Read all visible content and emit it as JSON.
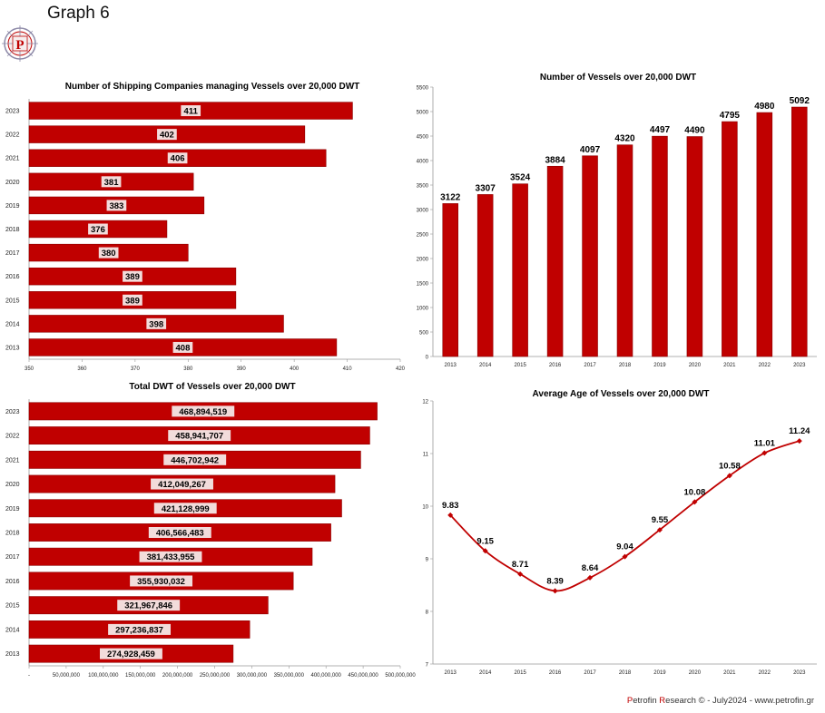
{
  "page": {
    "title": "Graph 6",
    "footer": {
      "p": "P",
      "part1": "etrofin ",
      "r": "R",
      "part2": "esearch © - July2024 - www.petrofin.gr"
    },
    "logo_letter": "P"
  },
  "colors": {
    "bar": "#c00000",
    "bar_border": "#8b0000",
    "label_bg": "#f2dcdb",
    "line": "#c00000",
    "axis": "#999999"
  },
  "chart_data": [
    {
      "id": "companies",
      "type": "bar",
      "orientation": "horizontal",
      "title": "Number of Shipping Companies managing Vessels over 20,000 DWT",
      "categories": [
        "2023",
        "2022",
        "2021",
        "2020",
        "2019",
        "2018",
        "2017",
        "2016",
        "2015",
        "2014",
        "2013"
      ],
      "values": [
        411,
        402,
        406,
        381,
        383,
        376,
        380,
        389,
        389,
        398,
        408
      ],
      "labels": [
        "411",
        "402",
        "406",
        "381",
        "383",
        "376",
        "380",
        "389",
        "389",
        "398",
        "408"
      ],
      "xlim": [
        350,
        420
      ],
      "xticks": [
        350,
        360,
        370,
        380,
        390,
        400,
        410,
        420
      ],
      "xtick_labels": [
        "350",
        "360",
        "370",
        "380",
        "390",
        "400",
        "410",
        "420"
      ],
      "xlabel": "",
      "ylabel": ""
    },
    {
      "id": "vessels",
      "type": "bar",
      "orientation": "vertical",
      "title": "Number of Vessels over 20,000 DWT",
      "categories": [
        "2013",
        "2014",
        "2015",
        "2016",
        "2017",
        "2018",
        "2019",
        "2020",
        "2021",
        "2022",
        "2023"
      ],
      "values": [
        3122,
        3307,
        3524,
        3884,
        4097,
        4320,
        4497,
        4490,
        4795,
        4980,
        5092
      ],
      "labels": [
        "3122",
        "3307",
        "3524",
        "3884",
        "4097",
        "4320",
        "4497",
        "4490",
        "4795",
        "4980",
        "5092"
      ],
      "ylim": [
        0,
        5500
      ],
      "yticks": [
        0,
        500,
        1000,
        1500,
        2000,
        2500,
        3000,
        3500,
        4000,
        4500,
        5000,
        5500
      ],
      "ytick_labels": [
        "0",
        "500",
        "1000",
        "1500",
        "2000",
        "2500",
        "3000",
        "3500",
        "4000",
        "4500",
        "5000",
        "5500"
      ],
      "xlabel": "",
      "ylabel": ""
    },
    {
      "id": "dwt",
      "type": "bar",
      "orientation": "horizontal",
      "title": "Total DWT of Vessels over 20,000 DWT",
      "categories": [
        "2023",
        "2022",
        "2021",
        "2020",
        "2019",
        "2018",
        "2017",
        "2016",
        "2015",
        "2014",
        "2013"
      ],
      "values": [
        468894519,
        458941707,
        446702942,
        412049267,
        421128999,
        406566483,
        381433955,
        355930032,
        321967846,
        297236837,
        274928459
      ],
      "labels": [
        "468,894,519",
        "458,941,707",
        "446,702,942",
        "412,049,267",
        "421,128,999",
        "406,566,483",
        "381,433,955",
        "355,930,032",
        "321,967,846",
        "297,236,837",
        "274,928,459"
      ],
      "xlim": [
        0,
        500000000
      ],
      "xticks": [
        0,
        50000000,
        100000000,
        150000000,
        200000000,
        250000000,
        300000000,
        350000000,
        400000000,
        450000000,
        500000000
      ],
      "xtick_labels": [
        "-",
        "50,000,000",
        "100,000,000",
        "150,000,000",
        "200,000,000",
        "250,000,000",
        "300,000,000",
        "350,000,000",
        "400,000,000",
        "450,000,000",
        "500,000,000"
      ],
      "xlabel": "",
      "ylabel": ""
    },
    {
      "id": "age",
      "type": "line",
      "title": "Average Age of Vessels over 20,000 DWT",
      "categories": [
        "2013",
        "2014",
        "2015",
        "2016",
        "2017",
        "2018",
        "2019",
        "2020",
        "2021",
        "2022",
        "2023"
      ],
      "values": [
        9.83,
        9.15,
        8.71,
        8.39,
        8.64,
        9.04,
        9.55,
        10.08,
        10.58,
        11.01,
        11.24
      ],
      "labels": [
        "9.83",
        "9.15",
        "8.71",
        "8.39",
        "8.64",
        "9.04",
        "9.55",
        "10.08",
        "10.58",
        "11.01",
        "11.24"
      ],
      "ylim": [
        7,
        12
      ],
      "yticks": [
        7,
        8,
        9,
        10,
        11,
        12
      ],
      "ytick_labels": [
        "7",
        "8",
        "9",
        "10",
        "11",
        "12"
      ],
      "xlabel": "",
      "ylabel": ""
    }
  ]
}
